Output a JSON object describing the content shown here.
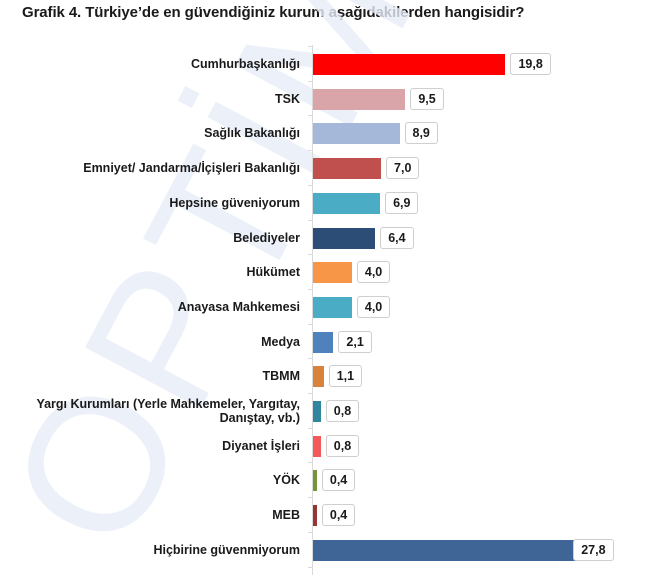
{
  "title": "Grafik 4. Türkiye’de en güvendiğiniz kurum aşağıdakilerden hangisidir?",
  "watermark": "OPTİMAR",
  "chart_data": {
    "type": "bar",
    "orientation": "horizontal",
    "title": "Grafik 4. Türkiye’de en güvendiğiniz kurum aşağıdakilerden hangisidir?",
    "xlabel": "",
    "ylabel": "",
    "grid": false,
    "legend": null,
    "unit": "%",
    "xlim": [
      0,
      30
    ],
    "categories": [
      "Cumhurbaşkanlığı",
      "TSK",
      "Sağlık Bakanlığı",
      "Emniyet/ Jandarma/İçişleri Bakanlığı",
      "Hepsine güveniyorum",
      "Belediyeler",
      "Hükümet",
      "Anayasa Mahkemesi",
      "Medya",
      "TBMM",
      "Yargı Kurumları (Yerle Mahkemeler, Yargıtay, Danıştay, vb.)",
      "Diyanet İşleri",
      "YÖK",
      "MEB",
      "Hiçbirine güvenmiyorum"
    ],
    "values": [
      19.8,
      9.5,
      8.9,
      7.0,
      6.9,
      6.4,
      4.0,
      4.0,
      2.1,
      1.1,
      0.8,
      0.8,
      0.4,
      0.4,
      27.8
    ],
    "value_labels": [
      "19,8",
      "9,5",
      "8,9",
      "7,0",
      "6,9",
      "6,4",
      "4,0",
      "4,0",
      "2,1",
      "1,1",
      "0,8",
      "0,8",
      "0,4",
      "0,4",
      "27,8"
    ],
    "colors": [
      "#ff0000",
      "#d9a5a8",
      "#a6b8da",
      "#c0504d",
      "#4bacc6",
      "#2c4d75",
      "#f79646",
      "#4bacc6",
      "#4f81bd",
      "#d9823b",
      "#31859c",
      "#f25a5a",
      "#77933c",
      "#943634",
      "#3f6496"
    ]
  },
  "rows": [
    {
      "label": "Cumhurbaşkanlığı",
      "value": "19,8"
    },
    {
      "label": "TSK",
      "value": "9,5"
    },
    {
      "label": "Sağlık Bakanlığı",
      "value": "8,9"
    },
    {
      "label": "Emniyet/ Jandarma/İçişleri Bakanlığı",
      "value": "7,0"
    },
    {
      "label": "Hepsine güveniyorum",
      "value": "6,9"
    },
    {
      "label": "Belediyeler",
      "value": "6,4"
    },
    {
      "label": "Hükümet",
      "value": "4,0"
    },
    {
      "label": "Anayasa Mahkemesi",
      "value": "4,0"
    },
    {
      "label": "Medya",
      "value": "2,1"
    },
    {
      "label": "TBMM",
      "value": "1,1"
    },
    {
      "label": "Yargı Kurumları (Yerle Mahkemeler, Yargıtay,\nDanıştay, vb.)",
      "value": "0,8"
    },
    {
      "label": "Diyanet İşleri",
      "value": "0,8"
    },
    {
      "label": "YÖK",
      "value": "0,4"
    },
    {
      "label": "MEB",
      "value": "0,4"
    },
    {
      "label": "Hiçbirine güvenmiyorum",
      "value": "27,8"
    }
  ]
}
